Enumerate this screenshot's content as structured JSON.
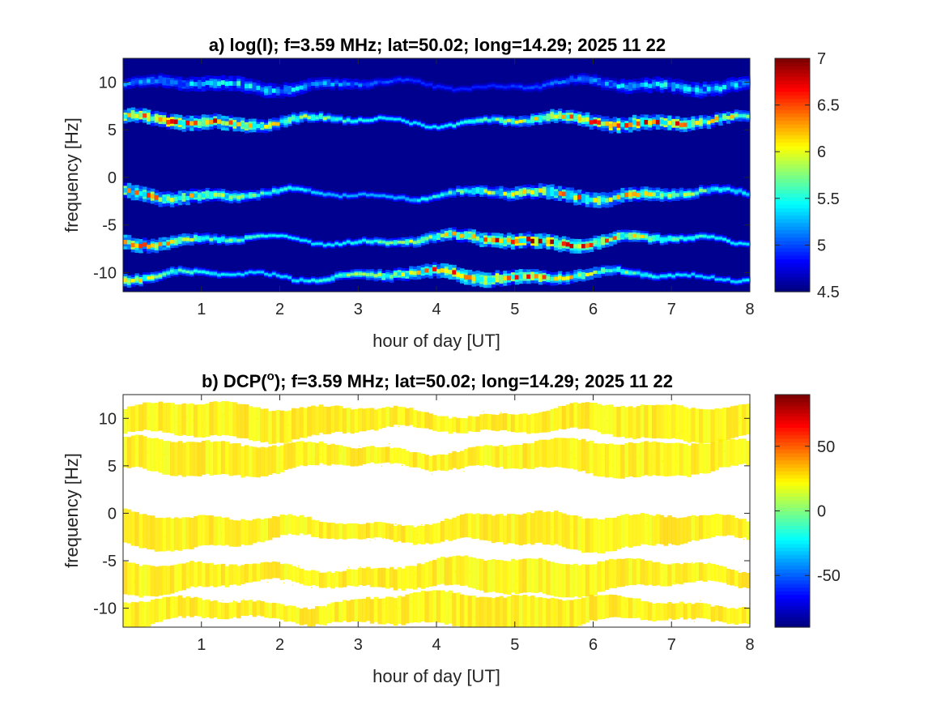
{
  "chart_data": [
    {
      "type": "heatmap",
      "title": "a) log(I); f=3.59 MHz;  lat=50.02; long=14.29; 2025 11 22",
      "xlabel": "hour of day [UT]",
      "ylabel": "frequency [Hz]",
      "xlim": [
        0,
        8
      ],
      "ylim": [
        -12,
        12.5
      ],
      "xticks": [
        "1",
        "2",
        "3",
        "4",
        "5",
        "6",
        "7",
        "8"
      ],
      "yticks": [
        "10",
        "5",
        "0",
        "-5",
        "-10"
      ],
      "colorbar": {
        "range": [
          4.5,
          7
        ],
        "ticks": [
          "7",
          "6.5",
          "6",
          "5.5",
          "5",
          "4.5"
        ],
        "colormap": "jet"
      },
      "background_color": "#00008f",
      "bands": [
        {
          "freq": 9.7,
          "peak_log_intensity": 5.6
        },
        {
          "freq": 5.9,
          "peak_log_intensity": 7.0
        },
        {
          "freq": -1.8,
          "peak_log_intensity": 6.6
        },
        {
          "freq": -6.6,
          "peak_log_intensity": 7.0
        },
        {
          "freq": -10.3,
          "peak_log_intensity": 6.9
        }
      ]
    },
    {
      "type": "heatmap",
      "title_pre": "b) DCP(",
      "title_sup": "o",
      "title_post": "); f=3.59 MHz;  lat=50.02; long=14.29; 2025 11 22",
      "xlabel": "hour of day [UT]",
      "ylabel": "frequency [Hz]",
      "xlim": [
        0,
        8
      ],
      "ylim": [
        -12,
        12.5
      ],
      "xticks": [
        "1",
        "2",
        "3",
        "4",
        "5",
        "6",
        "7",
        "8"
      ],
      "yticks": [
        "10",
        "5",
        "0",
        "-5",
        "-10"
      ],
      "colorbar": {
        "range": [
          -90,
          90
        ],
        "ticks": [
          "50",
          "0",
          "-50"
        ],
        "colormap": "jet"
      },
      "background_color": "#ffffff",
      "bands": [
        {
          "freq": 9.7,
          "dcp": 25
        },
        {
          "freq": 5.9,
          "dcp": 25
        },
        {
          "freq": -1.8,
          "dcp": 25
        },
        {
          "freq": -6.6,
          "dcp": 25
        },
        {
          "freq": -10.3,
          "dcp": 25
        }
      ]
    }
  ]
}
